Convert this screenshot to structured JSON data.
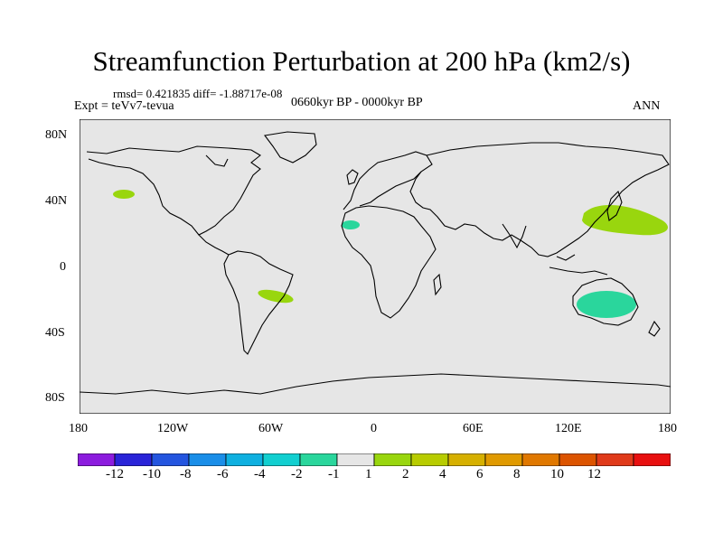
{
  "title": "Streamfunction Perturbation at 200 hPa (km2/s)",
  "stats": "rmsd= 0.421835 diff= -1.88717e-08",
  "experiment": "Expt = teVv7-tevua",
  "period": "0660kyr BP - 0000kyr BP",
  "season": "ANN",
  "map": {
    "background_color": "#e6e6e6",
    "lat_ticks": [
      "80N",
      "40N",
      "0",
      "40S",
      "80S"
    ],
    "lon_ticks": [
      "180",
      "120W",
      "60W",
      "0",
      "60E",
      "120E",
      "180"
    ],
    "regions": [
      {
        "name": "north-pacific-anomaly",
        "lon": -145,
        "lat": 43,
        "color": "#99d60e"
      },
      {
        "name": "canary-anomaly",
        "lon": -17,
        "lat": 26,
        "color": "#2ad69c"
      },
      {
        "name": "south-america-anomaly",
        "lon": -56,
        "lat": -19,
        "color": "#99d60e"
      },
      {
        "name": "northwest-pacific-anomaly",
        "lon": 155,
        "lat": 32,
        "color": "#99d60e"
      },
      {
        "name": "australia-anomaly",
        "lon": 145,
        "lat": -25,
        "color": "#2ad69c"
      }
    ]
  },
  "colorbar": {
    "colors": [
      "#8c1cde",
      "#2a24d8",
      "#2455df",
      "#1a8ee8",
      "#0fb0e0",
      "#12cfd0",
      "#2ad69c",
      "#e6e6e6",
      "#99d60e",
      "#b8cc00",
      "#d6b000",
      "#e09a00",
      "#e07800",
      "#dc5400",
      "#e03a1a",
      "#e81010"
    ],
    "labels": [
      "-12",
      "-10",
      "-8",
      "-6",
      "-4",
      "-2",
      "-1",
      "1",
      "2",
      "4",
      "6",
      "8",
      "10",
      "12"
    ]
  }
}
